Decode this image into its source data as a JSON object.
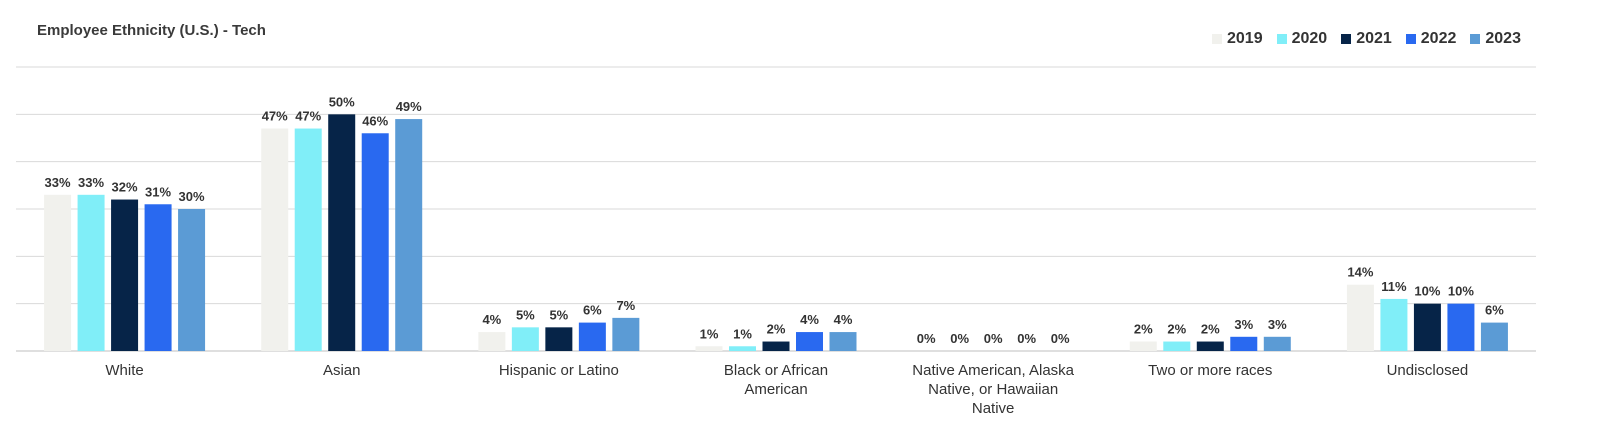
{
  "chart_data": {
    "type": "bar",
    "title": "Employee Ethnicity (U.S.) - Tech",
    "categories": [
      "White",
      "Asian",
      "Hispanic or Latino",
      "Black or African American",
      "Native American, Alaska Native, or Hawaiian Native",
      "Two or more races",
      "Undisclosed"
    ],
    "series": [
      {
        "name": "2019",
        "color": "#f1f1ed",
        "values": [
          33,
          47,
          4,
          1,
          0,
          2,
          14
        ]
      },
      {
        "name": "2020",
        "color": "#80eef8",
        "values": [
          33,
          47,
          5,
          1,
          0,
          2,
          11
        ]
      },
      {
        "name": "2021",
        "color": "#062448",
        "values": [
          32,
          50,
          5,
          2,
          0,
          2,
          10
        ]
      },
      {
        "name": "2022",
        "color": "#2969f0",
        "values": [
          31,
          46,
          6,
          4,
          0,
          3,
          10
        ]
      },
      {
        "name": "2023",
        "color": "#5b9bd5",
        "values": [
          30,
          49,
          7,
          4,
          0,
          3,
          6
        ]
      }
    ],
    "value_suffix": "%",
    "ylim": [
      0,
      60
    ],
    "grid": true,
    "legend_position": "top-right"
  }
}
